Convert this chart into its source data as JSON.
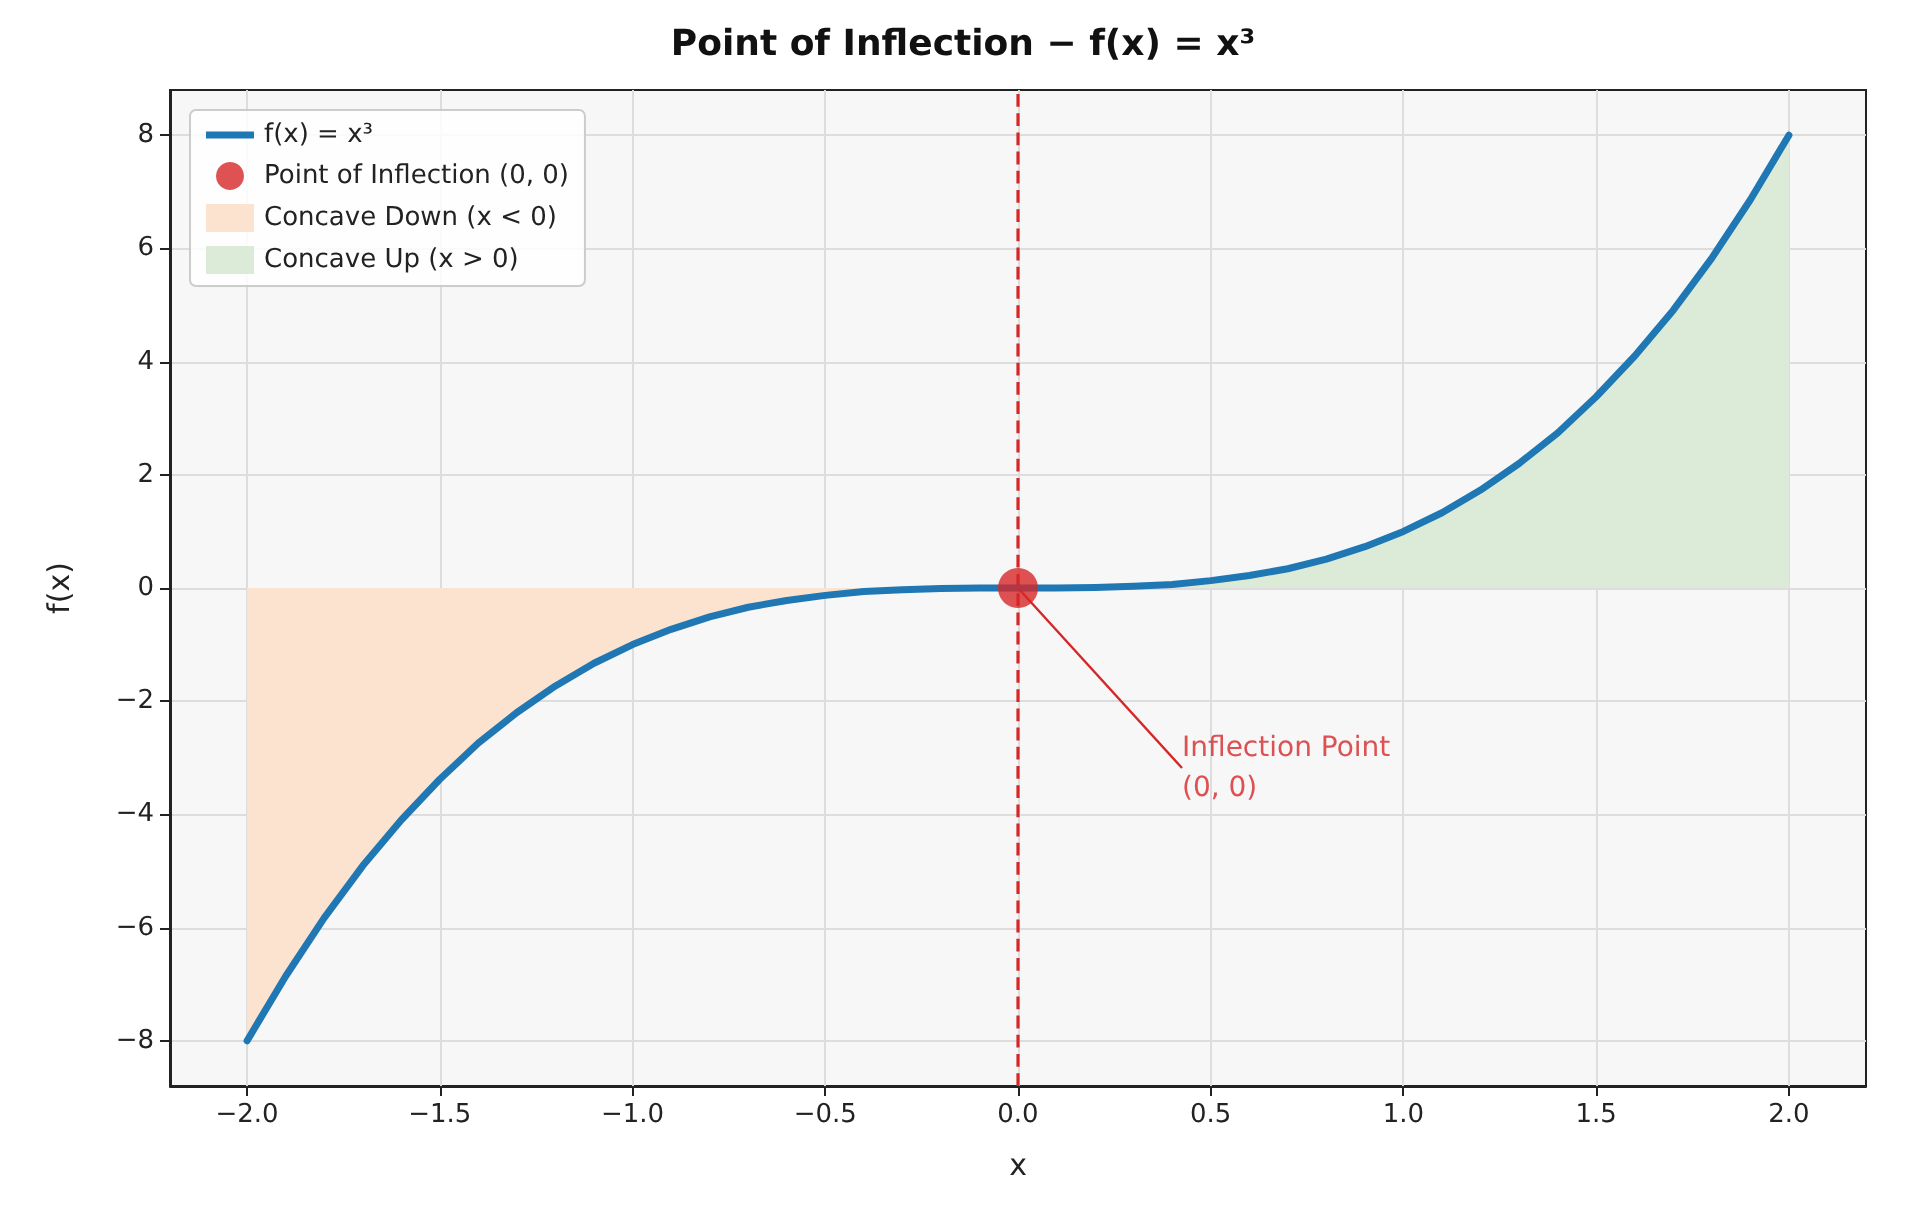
{
  "chart_data": {
    "type": "line",
    "title": "Point of Inflection − f(x) = x³",
    "xlabel": "x",
    "ylabel": "f(x)",
    "xlim": [
      -2.2,
      2.2
    ],
    "ylim": [
      -8.8,
      8.8
    ],
    "xticks": [
      {
        "value": -2,
        "label": "−2.0"
      },
      {
        "value": -1.5,
        "label": "−1.5"
      },
      {
        "value": -1,
        "label": "−1.0"
      },
      {
        "value": -0.5,
        "label": "−0.5"
      },
      {
        "value": 0,
        "label": "0.0"
      },
      {
        "value": 0.5,
        "label": "0.5"
      },
      {
        "value": 1,
        "label": "1.0"
      },
      {
        "value": 1.5,
        "label": "1.5"
      },
      {
        "value": 2,
        "label": "2.0"
      }
    ],
    "yticks": [
      {
        "value": -8,
        "label": "−8"
      },
      {
        "value": -6,
        "label": "−6"
      },
      {
        "value": -4,
        "label": "−4"
      },
      {
        "value": -2,
        "label": "−2"
      },
      0,
      2,
      4,
      6,
      8
    ],
    "grid": true,
    "legend": "top left",
    "series": [
      {
        "name": "f(x) = x³",
        "color": "#1f77b4",
        "marker": "none",
        "line_style": "solid",
        "x": [
          -2,
          -1.9,
          -1.8,
          -1.7,
          -1.6,
          -1.5,
          -1.4,
          -1.3,
          -1.2,
          -1.1,
          -1,
          -0.9,
          -0.8,
          -0.7,
          -0.6,
          -0.5,
          -0.4,
          -0.3,
          -0.2,
          -0.1,
          0,
          0.1,
          0.2,
          0.3,
          0.4,
          0.5,
          0.6,
          0.7,
          0.8,
          0.9,
          1,
          1.1,
          1.2,
          1.3,
          1.4,
          1.5,
          1.6,
          1.7,
          1.8,
          1.9,
          2
        ],
        "values": [
          -8,
          -6.86,
          -5.83,
          -4.91,
          -4.1,
          -3.38,
          -2.74,
          -2.2,
          -1.73,
          -1.33,
          -1,
          -0.73,
          -0.51,
          -0.34,
          -0.22,
          -0.13,
          -0.06,
          -0.03,
          -0.01,
          0,
          0,
          0,
          0.01,
          0.03,
          0.06,
          0.13,
          0.22,
          0.34,
          0.51,
          0.73,
          1,
          1.33,
          1.73,
          2.2,
          2.74,
          3.38,
          4.1,
          4.91,
          5.83,
          6.86,
          8
        ]
      },
      {
        "name": "Point of Inflection (0, 0)",
        "type": "scatter",
        "color": "#d62728",
        "marker": "circle",
        "x": [
          0
        ],
        "values": [
          0
        ]
      },
      {
        "name": "Concave Down (x < 0)",
        "type": "area",
        "color": "#fbe3cf",
        "x": [
          -2,
          -1.9,
          -1.8,
          -1.7,
          -1.6,
          -1.5,
          -1.4,
          -1.3,
          -1.2,
          -1.1,
          -1,
          -0.9,
          -0.8,
          -0.7,
          -0.6,
          -0.5,
          -0.4,
          -0.3,
          -0.2,
          -0.1,
          0
        ],
        "values": [
          -8,
          -6.86,
          -5.83,
          -4.91,
          -4.1,
          -3.38,
          -2.74,
          -2.2,
          -1.73,
          -1.33,
          -1,
          -0.73,
          -0.51,
          -0.34,
          -0.22,
          -0.13,
          -0.06,
          -0.03,
          -0.01,
          0,
          0
        ]
      },
      {
        "name": "Concave Up (x > 0)",
        "type": "area",
        "color": "#dcebd8",
        "x": [
          0,
          0.1,
          0.2,
          0.3,
          0.4,
          0.5,
          0.6,
          0.7,
          0.8,
          0.9,
          1,
          1.1,
          1.2,
          1.3,
          1.4,
          1.5,
          1.6,
          1.7,
          1.8,
          1.9,
          2
        ],
        "values": [
          0,
          0,
          0.01,
          0.03,
          0.06,
          0.13,
          0.22,
          0.34,
          0.51,
          0.73,
          1,
          1.33,
          1.73,
          2.2,
          2.74,
          3.38,
          4.1,
          4.91,
          5.83,
          6.86,
          8
        ]
      }
    ],
    "ref_lines": [
      {
        "axis": "x",
        "value": 0,
        "color": "#d62728",
        "line_style": "dashed"
      }
    ],
    "annotations": [
      {
        "text": "Inflection Point\n(0, 0)",
        "x": 0,
        "y": 0
      }
    ]
  }
}
